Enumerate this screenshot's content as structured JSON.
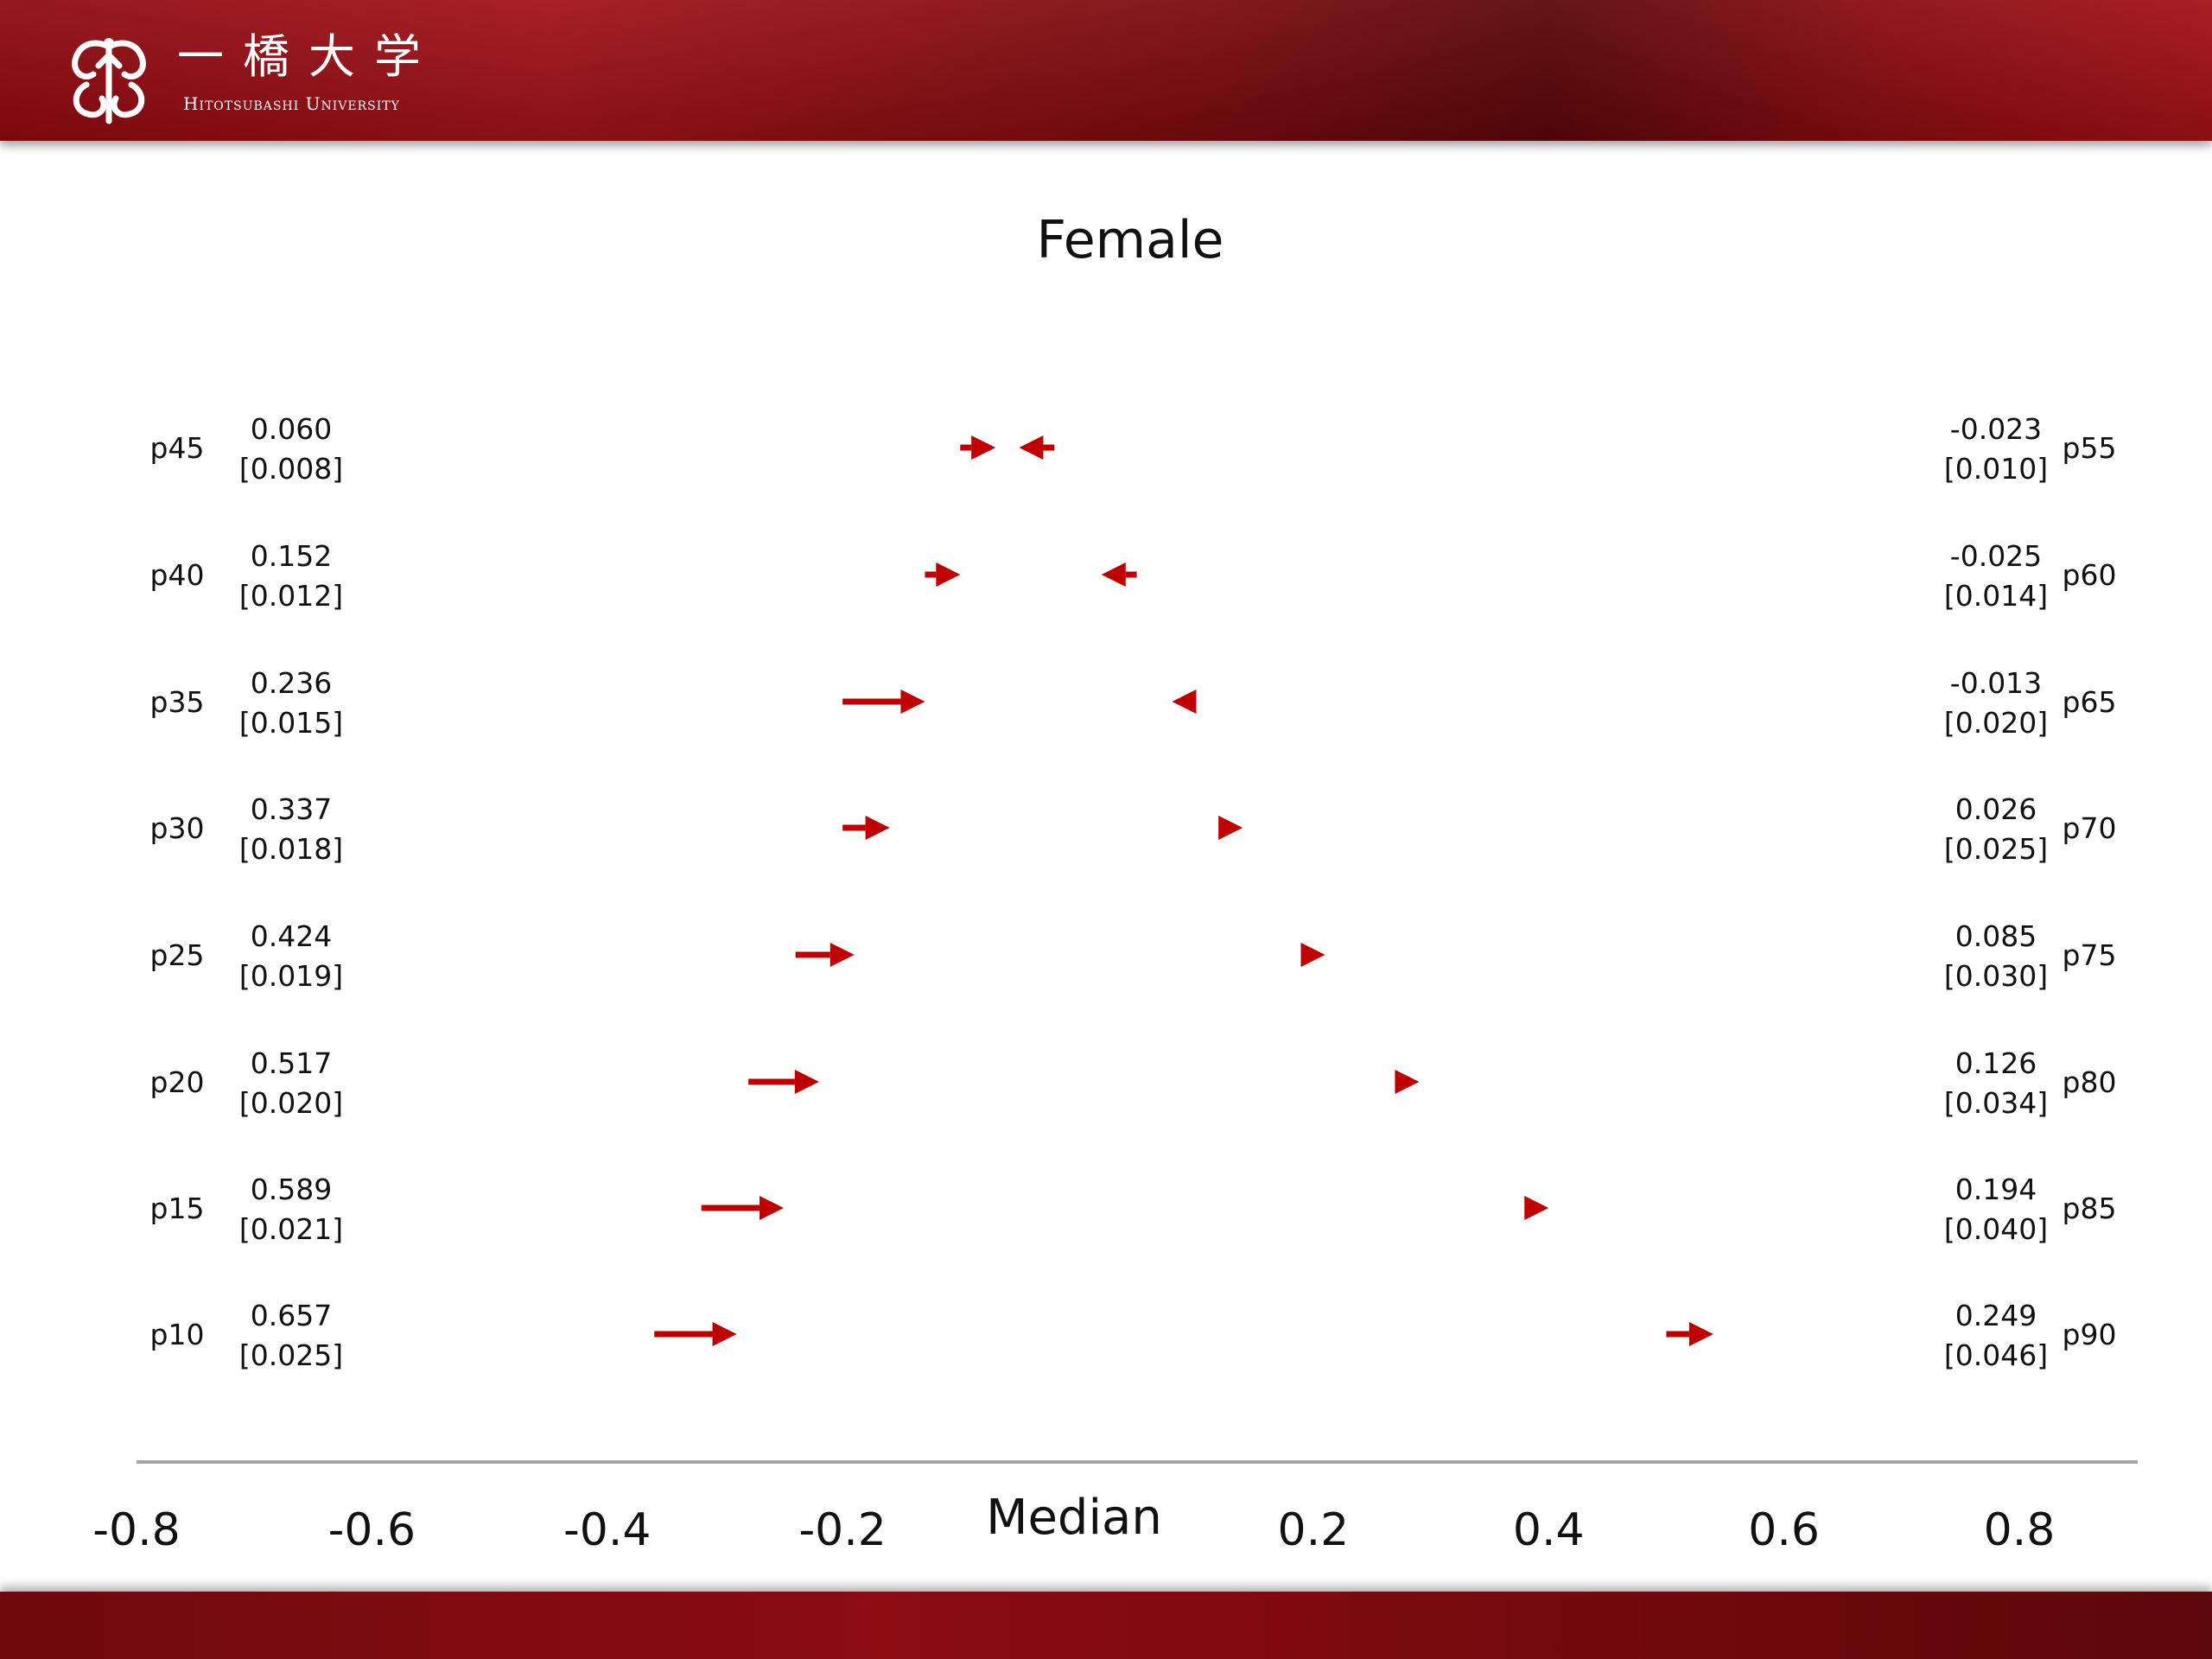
{
  "header": {
    "logo_kanji": "一橋大学",
    "logo_latin": "Hitotsubashi University"
  },
  "colors": {
    "header_red": "#9e1117",
    "arrow_red": "#c00000",
    "axis_line": "#a6a6a6",
    "title_gray": "#595959",
    "tick_gray": "#595959"
  },
  "chart_data": {
    "type": "arrow",
    "title": "Female",
    "xlabel": "Median",
    "xlim": [
      -0.8,
      0.8
    ],
    "x_ticks": [
      "-0.8",
      "-0.6",
      "-0.4",
      "-0.2",
      "0.2",
      "0.4",
      "0.6",
      "0.8"
    ],
    "grid": false,
    "legend": "none",
    "left_series": [
      {
        "name": "p45",
        "value": "0.060",
        "se": "[0.008]",
        "x_start": -0.1,
        "x_end": -0.07
      },
      {
        "name": "p40",
        "value": "0.152",
        "se": "[0.012]",
        "x_start": -0.13,
        "x_end": -0.1
      },
      {
        "name": "p35",
        "value": "0.236",
        "se": "[0.015]",
        "x_start": -0.2,
        "x_end": -0.13
      },
      {
        "name": "p30",
        "value": "0.337",
        "se": "[0.018]",
        "x_start": -0.2,
        "x_end": -0.16
      },
      {
        "name": "p25",
        "value": "0.424",
        "se": "[0.019]",
        "x_start": -0.24,
        "x_end": -0.19
      },
      {
        "name": "p20",
        "value": "0.517",
        "se": "[0.020]",
        "x_start": -0.28,
        "x_end": -0.22
      },
      {
        "name": "p15",
        "value": "0.589",
        "se": "[0.021]",
        "x_start": -0.32,
        "x_end": -0.25
      },
      {
        "name": "p10",
        "value": "0.657",
        "se": "[0.025]",
        "x_start": -0.36,
        "x_end": -0.29
      }
    ],
    "right_series": [
      {
        "name": "p55",
        "value": "-0.023",
        "se": "[0.010]",
        "x_start": -0.02,
        "x_end": -0.05
      },
      {
        "name": "p60",
        "value": "-0.025",
        "se": "[0.014]",
        "x_start": 0.05,
        "x_end": 0.02
      },
      {
        "name": "p65",
        "value": "-0.013",
        "se": "[0.020]",
        "x_start": 0.1,
        "x_end": 0.08
      },
      {
        "name": "p70",
        "value": "0.026",
        "se": "[0.025]",
        "x_start": 0.12,
        "x_end": 0.14
      },
      {
        "name": "p75",
        "value": "0.085",
        "se": "[0.030]",
        "x_start": 0.2,
        "x_end": 0.21
      },
      {
        "name": "p80",
        "value": "0.126",
        "se": "[0.034]",
        "x_start": 0.28,
        "x_end": 0.29
      },
      {
        "name": "p85",
        "value": "0.194",
        "se": "[0.040]",
        "x_start": 0.38,
        "x_end": 0.4
      },
      {
        "name": "p90",
        "value": "0.249",
        "se": "[0.046]",
        "x_start": 0.5,
        "x_end": 0.54
      }
    ]
  }
}
